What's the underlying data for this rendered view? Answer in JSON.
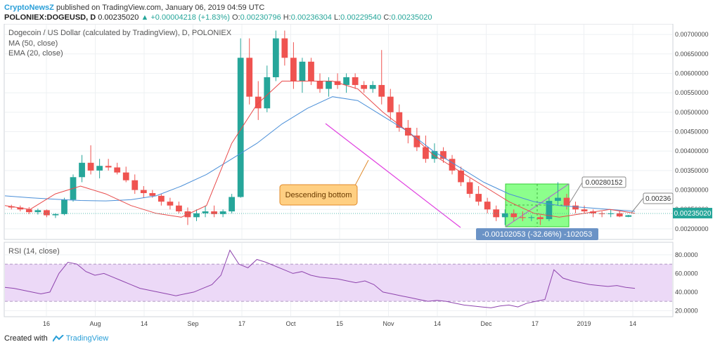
{
  "header": {
    "brand": "CryptoNewsZ",
    "published": "published on TradingView.com, January 06, 2019 04:59 UTC",
    "symbol": "POLONIEX:DOGEUSD, D",
    "last": "0.00235020",
    "change": "▲ +0.00004218 (+1.83%)",
    "o_label": "O:",
    "o_value": "0.00230796",
    "h_label": "H:",
    "h_value": "0.00236304",
    "l_label": "L:",
    "l_value": "0.00229540",
    "c_label": "C:",
    "c_value": "0.00235020"
  },
  "legend": {
    "title": "Dogecoin / US Dollar (calculated by TradingView), D, POLONIEX",
    "ma": "MA (50, close)",
    "ema": "EMA (20, close)",
    "rsi": "RSI (14, close)"
  },
  "annotations": {
    "callout": "Descending bottom",
    "measure": "-0.00102053 (-32.66%) -102053",
    "label_high": "0.00280152",
    "label_right": "0.00236",
    "last_price": "0.00235020"
  },
  "footer": {
    "created": "Created with",
    "tv": "TradingView"
  },
  "colors": {
    "up": "#26a69a",
    "down": "#ef5350",
    "ma": "#4a8fd8",
    "ema": "#e84a4a",
    "rsi": "#8e44ad",
    "rsi_band": "#ecd9f7",
    "trendline": "#e040e0",
    "box": "#66ff66"
  },
  "chart_data": [
    {
      "type": "candlestick",
      "title": "Dogecoin / US Dollar (calculated by TradingView), D, POLONIEX",
      "ylim": [
        0.0018,
        0.0072
      ],
      "y_ticks": [
        "0.00700000",
        "0.00650000",
        "0.00600000",
        "0.00550000",
        "0.00500000",
        "0.00450000",
        "0.00400000",
        "0.00350000",
        "0.00300000",
        "0.00250000",
        "0.00200000"
      ],
      "x_ticks": [
        "16",
        "Aug",
        "14",
        "Sep",
        "17",
        "Oct",
        "15",
        "Nov",
        "14",
        "Dec",
        "17",
        "2019",
        "14"
      ],
      "series": [
        {
          "name": "MA (50, close)",
          "values": [
            0.00285,
            0.0028,
            0.00276,
            0.00273,
            0.00272,
            0.00275,
            0.00285,
            0.0031,
            0.0034,
            0.0038,
            0.0042,
            0.0047,
            0.0051,
            0.0054,
            0.0053,
            0.0049,
            0.0045,
            0.004,
            0.0036,
            0.0032,
            0.0029,
            0.0027,
            0.0026,
            0.00255,
            0.0025,
            0.00245
          ]
        },
        {
          "name": "EMA (20, close)",
          "values": [
            0.0026,
            0.0025,
            0.0029,
            0.0031,
            0.0029,
            0.0026,
            0.0024,
            0.0023,
            0.0026,
            0.0042,
            0.0052,
            0.0058,
            0.0058,
            0.0058,
            0.0056,
            0.005,
            0.0045,
            0.0039,
            0.0035,
            0.0031,
            0.0027,
            0.0024,
            0.0023,
            0.0024,
            0.0025,
            0.0024
          ]
        }
      ],
      "candles": [
        [
          0.00258,
          0.00262,
          0.0025,
          0.00255
        ],
        [
          0.00255,
          0.0026,
          0.00245,
          0.0025
        ],
        [
          0.0025,
          0.00256,
          0.00238,
          0.00243
        ],
        [
          0.00243,
          0.00252,
          0.00237,
          0.00248
        ],
        [
          0.00248,
          0.0025,
          0.0023,
          0.00235
        ],
        [
          0.00235,
          0.0024,
          0.00228,
          0.00238
        ],
        [
          0.00238,
          0.0028,
          0.00235,
          0.00275
        ],
        [
          0.00275,
          0.0034,
          0.0027,
          0.00333
        ],
        [
          0.00333,
          0.0039,
          0.0032,
          0.0037
        ],
        [
          0.0037,
          0.00415,
          0.0034,
          0.0035
        ],
        [
          0.0035,
          0.0038,
          0.0033,
          0.00362
        ],
        [
          0.00362,
          0.0038,
          0.0035,
          0.00358
        ],
        [
          0.00358,
          0.0037,
          0.0034,
          0.00345
        ],
        [
          0.00345,
          0.0036,
          0.0032,
          0.00325
        ],
        [
          0.00325,
          0.0034,
          0.0029,
          0.003
        ],
        [
          0.003,
          0.0031,
          0.0028,
          0.00292
        ],
        [
          0.00292,
          0.003,
          0.0028,
          0.00285
        ],
        [
          0.00285,
          0.0029,
          0.0026,
          0.0027
        ],
        [
          0.0027,
          0.0028,
          0.0025,
          0.0026
        ],
        [
          0.0026,
          0.0027,
          0.0024,
          0.00245
        ],
        [
          0.00245,
          0.00255,
          0.0021,
          0.0023
        ],
        [
          0.0023,
          0.0025,
          0.0022,
          0.0024
        ],
        [
          0.0024,
          0.0026,
          0.0023,
          0.00245
        ],
        [
          0.00245,
          0.0026,
          0.0023,
          0.00238
        ],
        [
          0.00238,
          0.0025,
          0.0023,
          0.00245
        ],
        [
          0.00245,
          0.0029,
          0.0024,
          0.00282
        ],
        [
          0.00282,
          0.0069,
          0.0028,
          0.0064
        ],
        [
          0.0064,
          0.0069,
          0.0052,
          0.0054
        ],
        [
          0.0054,
          0.0058,
          0.0048,
          0.0051
        ],
        [
          0.0051,
          0.0062,
          0.005,
          0.0059
        ],
        [
          0.0059,
          0.0071,
          0.0058,
          0.0069
        ],
        [
          0.0069,
          0.0071,
          0.0062,
          0.0064
        ],
        [
          0.0064,
          0.0068,
          0.0056,
          0.0058
        ],
        [
          0.0058,
          0.0064,
          0.0055,
          0.0063
        ],
        [
          0.0063,
          0.0064,
          0.0057,
          0.0058
        ],
        [
          0.0058,
          0.006,
          0.0055,
          0.0056
        ],
        [
          0.0056,
          0.0059,
          0.0054,
          0.0058
        ],
        [
          0.0058,
          0.006,
          0.0056,
          0.0057
        ],
        [
          0.0057,
          0.006,
          0.0055,
          0.0059
        ],
        [
          0.0059,
          0.006,
          0.0056,
          0.0057
        ],
        [
          0.0057,
          0.0058,
          0.0055,
          0.0056
        ],
        [
          0.0056,
          0.0058,
          0.0055,
          0.0057
        ],
        [
          0.0057,
          0.0066,
          0.0052,
          0.0054
        ],
        [
          0.0054,
          0.0056,
          0.0048,
          0.005
        ],
        [
          0.005,
          0.0052,
          0.0045,
          0.0046
        ],
        [
          0.0046,
          0.0048,
          0.0042,
          0.0044
        ],
        [
          0.0044,
          0.0046,
          0.004,
          0.0041
        ],
        [
          0.0041,
          0.0044,
          0.0037,
          0.0038
        ],
        [
          0.0038,
          0.0042,
          0.0037,
          0.004
        ],
        [
          0.004,
          0.0041,
          0.0037,
          0.0038
        ],
        [
          0.0038,
          0.0039,
          0.0034,
          0.0035
        ],
        [
          0.0035,
          0.0036,
          0.0031,
          0.0032
        ],
        [
          0.0032,
          0.0033,
          0.0028,
          0.0029
        ],
        [
          0.0029,
          0.0031,
          0.0026,
          0.0027
        ],
        [
          0.0027,
          0.0028,
          0.0024,
          0.0025
        ],
        [
          0.0025,
          0.0026,
          0.0022,
          0.0023
        ],
        [
          0.0023,
          0.0025,
          0.0021,
          0.0024
        ],
        [
          0.0024,
          0.0025,
          0.0022,
          0.0023
        ],
        [
          0.0023,
          0.00245,
          0.0022,
          0.00228
        ],
        [
          0.00228,
          0.00235,
          0.0022,
          0.0023
        ],
        [
          0.0023,
          0.00235,
          0.0021,
          0.00225
        ],
        [
          0.00225,
          0.0028,
          0.0022,
          0.00272
        ],
        [
          0.00272,
          0.0032,
          0.0026,
          0.0028
        ],
        [
          0.0028,
          0.0029,
          0.0025,
          0.0026
        ],
        [
          0.0026,
          0.0027,
          0.0024,
          0.0025
        ],
        [
          0.0025,
          0.0026,
          0.0024,
          0.00245
        ],
        [
          0.00245,
          0.0025,
          0.0023,
          0.0024
        ],
        [
          0.0024,
          0.00245,
          0.0023,
          0.00238
        ],
        [
          0.00238,
          0.0025,
          0.0023,
          0.0024
        ],
        [
          0.0024,
          0.00245,
          0.0023,
          0.00232
        ],
        [
          0.00231,
          0.00236,
          0.0023,
          0.00235
        ]
      ]
    },
    {
      "type": "line",
      "title": "RSI (14, close)",
      "ylim": [
        15,
        92
      ],
      "y_ticks": [
        "80.0000",
        "60.0000",
        "40.0000",
        "20.0000"
      ],
      "bands": [
        30,
        70
      ],
      "series": [
        {
          "name": "RSI (14, close)",
          "values": [
            45,
            44,
            42,
            40,
            38,
            40,
            60,
            72,
            70,
            62,
            58,
            60,
            56,
            52,
            48,
            44,
            42,
            40,
            38,
            36,
            38,
            40,
            44,
            48,
            58,
            85,
            70,
            66,
            75,
            72,
            68,
            64,
            60,
            62,
            58,
            56,
            55,
            54,
            52,
            50,
            52,
            48,
            40,
            38,
            36,
            34,
            32,
            30,
            31,
            30,
            28,
            26,
            25,
            24,
            23,
            25,
            26,
            24,
            28,
            30,
            32,
            64,
            55,
            52,
            50,
            48,
            47,
            46,
            47,
            45,
            44
          ]
        }
      ]
    }
  ]
}
